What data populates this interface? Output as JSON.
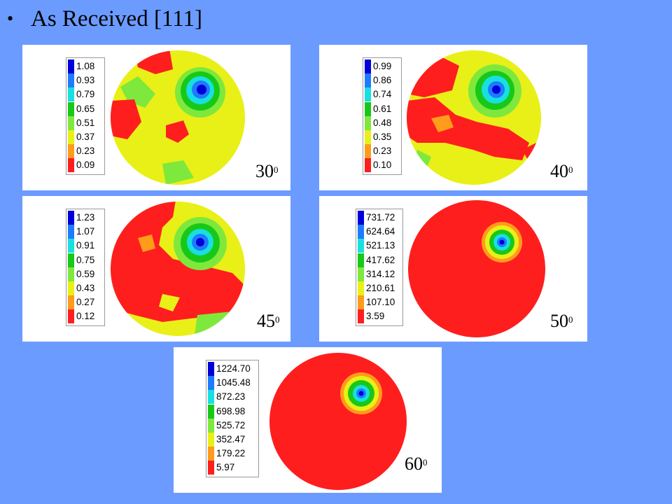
{
  "title": {
    "bullet": "•",
    "text": "As Received [111]"
  },
  "panels": [
    {
      "id": "p30",
      "angle": "30",
      "deg": "0",
      "levels": [
        "1.08",
        "0.93",
        "0.79",
        "0.65",
        "0.51",
        "0.37",
        "0.23",
        "0.09"
      ]
    },
    {
      "id": "p40",
      "angle": "40",
      "deg": "0",
      "levels": [
        "0.99",
        "0.86",
        "0.74",
        "0.61",
        "0.48",
        "0.35",
        "0.23",
        "0.10"
      ]
    },
    {
      "id": "p45",
      "angle": "45",
      "deg": "0",
      "levels": [
        "1.23",
        "1.07",
        "0.91",
        "0.75",
        "0.59",
        "0.43",
        "0.27",
        "0.12"
      ]
    },
    {
      "id": "p50",
      "angle": "50",
      "deg": "0",
      "levels": [
        "731.72",
        "624.64",
        "521.13",
        "417.62",
        "314.12",
        "210.61",
        "107.10",
        "3.59"
      ]
    },
    {
      "id": "p60",
      "angle": "60",
      "deg": "0",
      "levels": [
        "1224.70",
        "1045.48",
        "872.23",
        "698.98",
        "525.72",
        "352.47",
        "179.22",
        "5.97"
      ]
    }
  ],
  "colors": [
    "#0000d8",
    "#1e7bff",
    "#18e0e0",
    "#18c818",
    "#7ee83c",
    "#e8f018",
    "#ff9c1c",
    "#ff1e1e"
  ]
}
